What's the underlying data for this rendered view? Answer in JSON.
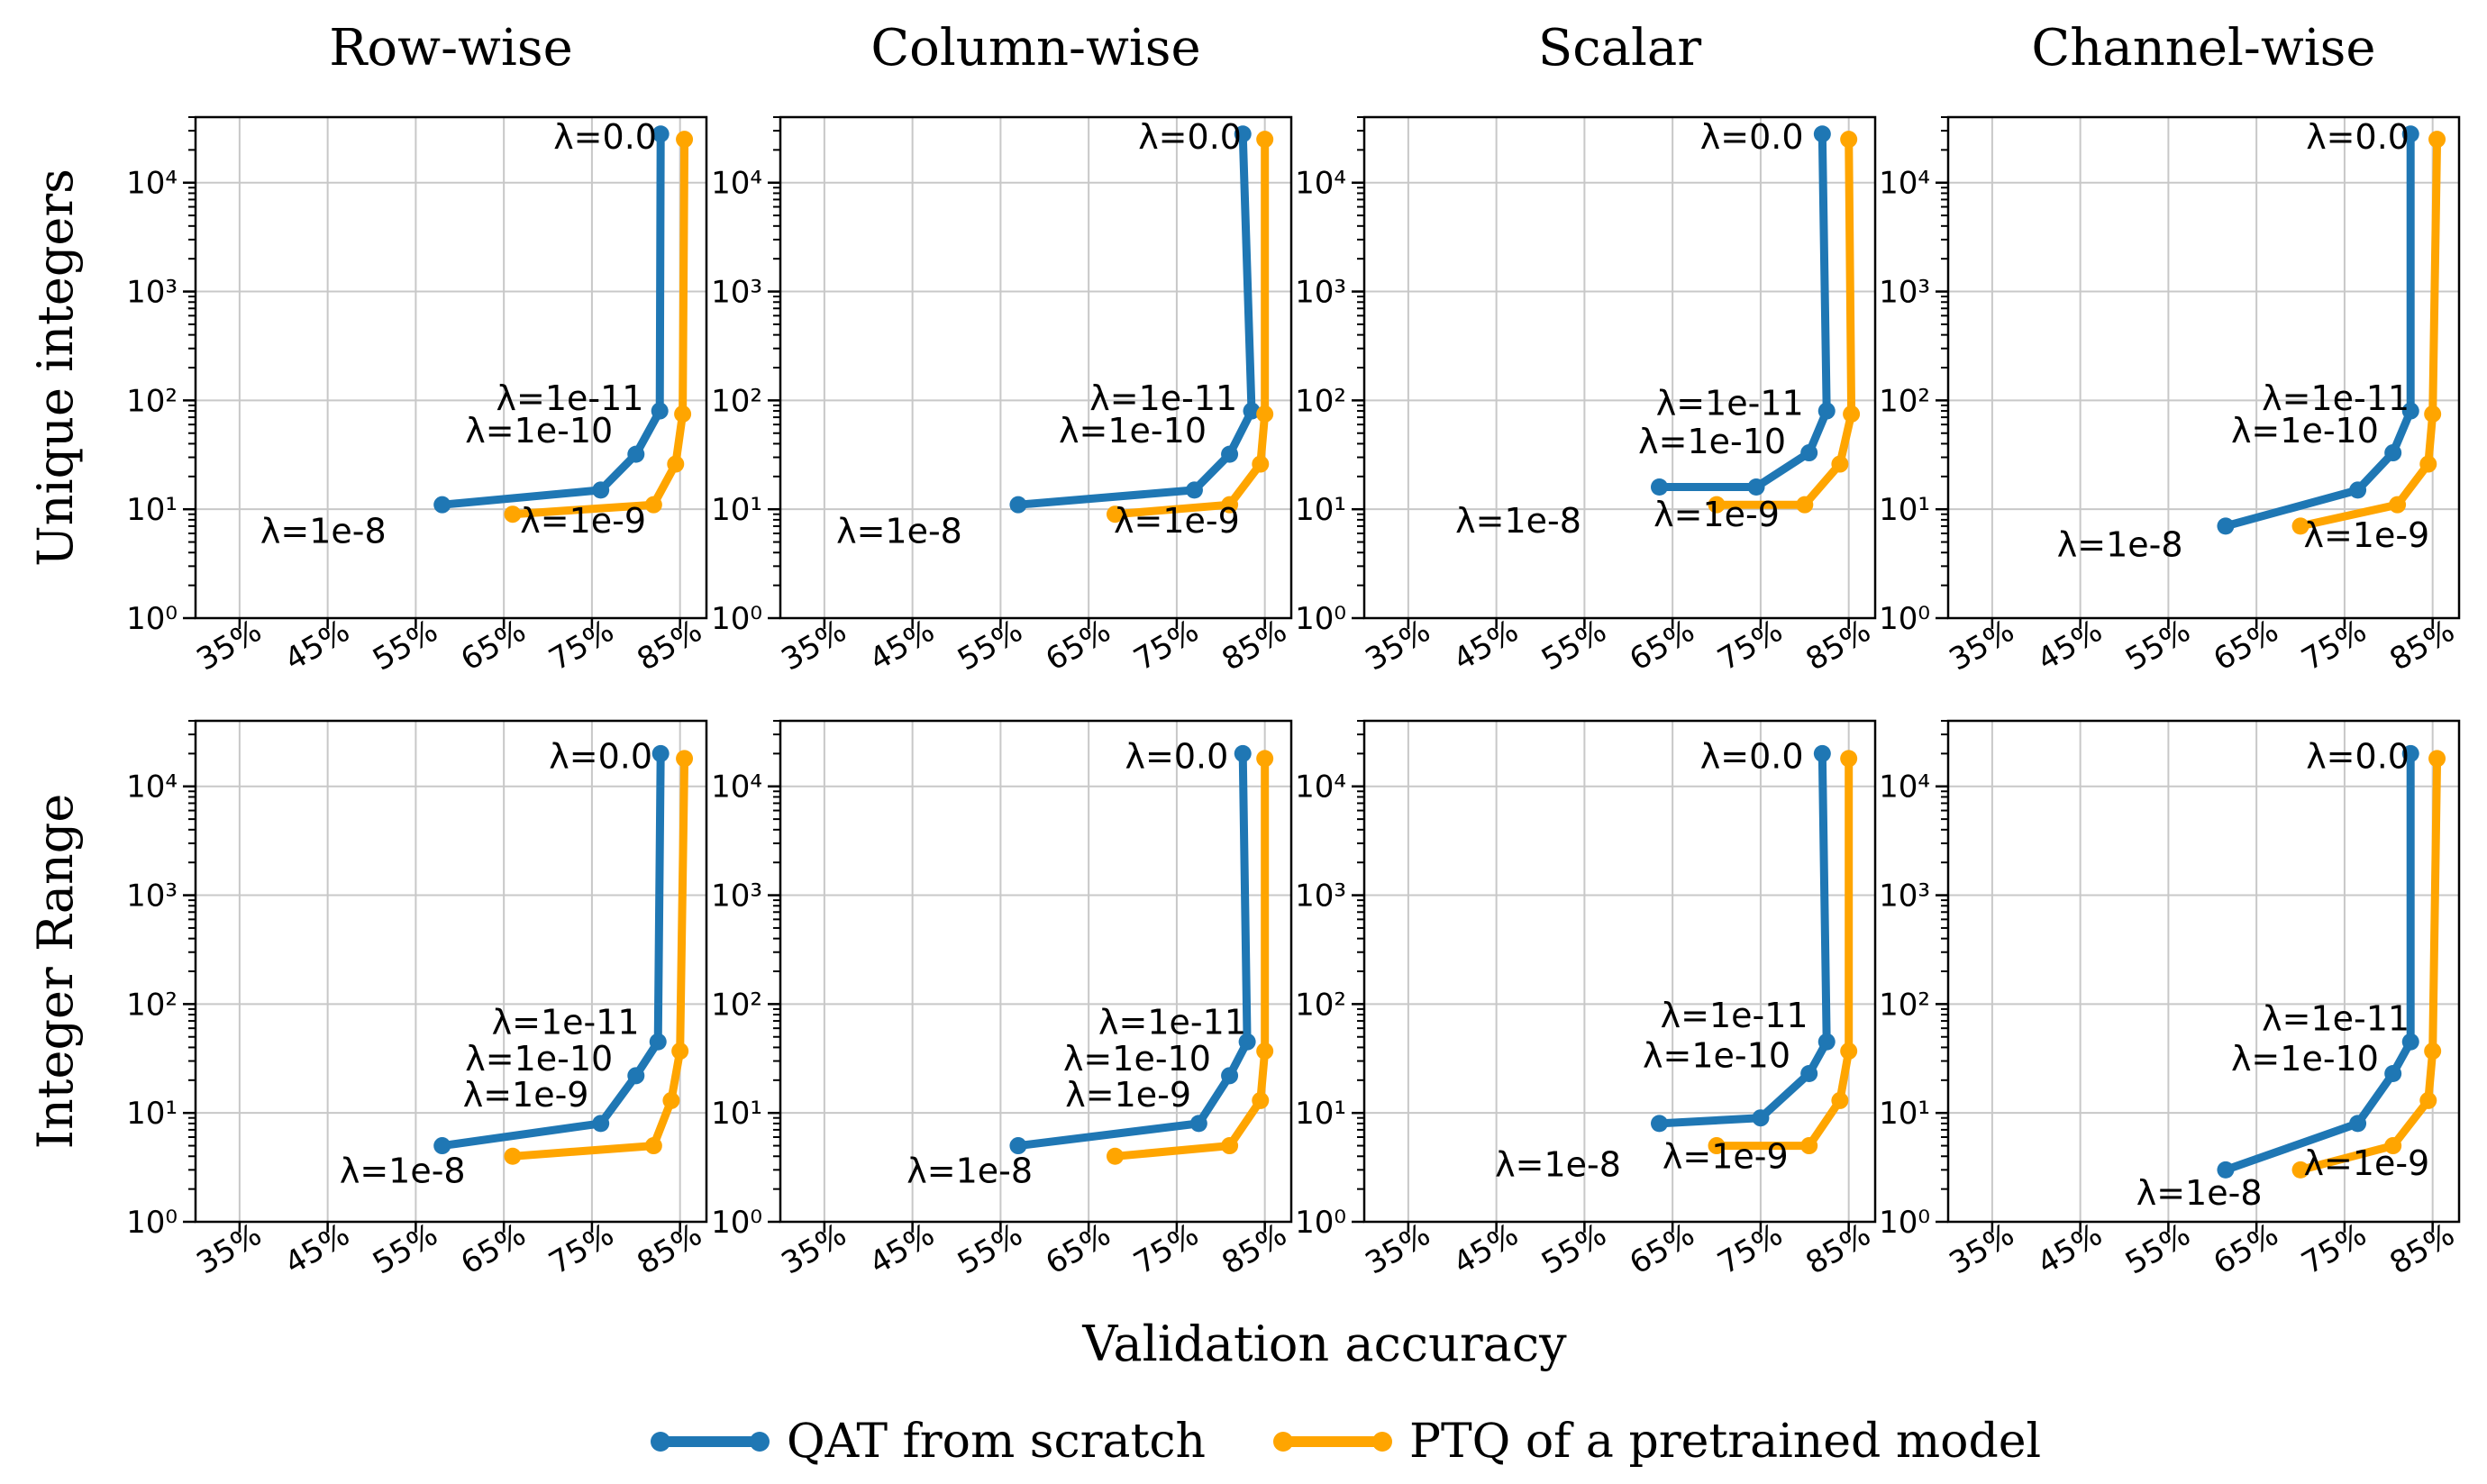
{
  "figure": {
    "column_titles": [
      "Row-wise",
      "Column-wise",
      "Scalar",
      "Channel-wise"
    ],
    "row_labels": [
      "Unique integers",
      "Integer Range"
    ],
    "xlabel": "Validation accuracy",
    "legend": [
      {
        "label": "QAT from scratch",
        "color": "#1f77b4"
      },
      {
        "label": "PTQ of a pretrained model",
        "color": "#ffa500"
      }
    ],
    "colors": {
      "qat": "#1f77b4",
      "ptq": "#ffa500",
      "grid": "#c8c8c8",
      "axis": "#000000"
    }
  },
  "chart_data": [
    {
      "type": "line",
      "row": 0,
      "col": 0,
      "title": "Row-wise",
      "ylabel": "Unique integers",
      "xlabel": "",
      "xlim": [
        30,
        88
      ],
      "x_ticks": [
        "35%",
        "45%",
        "55%",
        "65%",
        "75%",
        "85%"
      ],
      "ylog": true,
      "ylim": [
        1,
        40000
      ],
      "y_ticks": [
        "10⁰",
        "10¹",
        "10²",
        "10³",
        "10⁴"
      ],
      "grid": true,
      "series": [
        {
          "name": "QAT from scratch",
          "x": [
            58.0,
            76.0,
            80.0,
            82.7,
            82.8
          ],
          "y": [
            11,
            15,
            32,
            80,
            28000
          ]
        },
        {
          "name": "PTQ of a pretrained model",
          "x": [
            66.0,
            82.0,
            84.5,
            85.3,
            85.5
          ],
          "y": [
            9,
            11,
            26,
            75,
            25000
          ]
        }
      ],
      "annotations": [
        {
          "text": "λ=0.0",
          "x": 76.5,
          "y": 25000
        },
        {
          "text": "λ=1e-11",
          "x": 72.5,
          "y": 100
        },
        {
          "text": "λ=1e-10",
          "x": 69.0,
          "y": 50
        },
        {
          "text": "λ=1e-8",
          "x": 44.5,
          "y": 6.0
        },
        {
          "text": "λ=1e-9",
          "x": 74.0,
          "y": 7.5
        }
      ]
    },
    {
      "type": "line",
      "row": 0,
      "col": 1,
      "title": "Column-wise",
      "ylabel": "",
      "xlabel": "",
      "xlim": [
        30,
        88
      ],
      "x_ticks": [
        "35%",
        "45%",
        "55%",
        "65%",
        "75%",
        "85%"
      ],
      "ylog": true,
      "ylim": [
        1,
        40000
      ],
      "y_ticks": [
        "10⁰",
        "10¹",
        "10²",
        "10³",
        "10⁴"
      ],
      "grid": true,
      "series": [
        {
          "name": "QAT from scratch",
          "x": [
            57.0,
            77.0,
            81.0,
            83.5,
            82.5
          ],
          "y": [
            11,
            15,
            32,
            80,
            28000
          ]
        },
        {
          "name": "PTQ of a pretrained model",
          "x": [
            68.0,
            81.0,
            84.5,
            85.0,
            85.0
          ],
          "y": [
            9,
            11,
            26,
            75,
            25000
          ]
        }
      ],
      "annotations": [
        {
          "text": "λ=0.0",
          "x": 76.5,
          "y": 25000
        },
        {
          "text": "λ=1e-11",
          "x": 73.5,
          "y": 100
        },
        {
          "text": "λ=1e-10",
          "x": 70.0,
          "y": 50
        },
        {
          "text": "λ=1e-8",
          "x": 43.5,
          "y": 6.0
        },
        {
          "text": "λ=1e-9",
          "x": 75.0,
          "y": 7.5
        }
      ]
    },
    {
      "type": "line",
      "row": 0,
      "col": 2,
      "title": "Scalar",
      "ylabel": "",
      "xlabel": "",
      "xlim": [
        30,
        88
      ],
      "x_ticks": [
        "35%",
        "45%",
        "55%",
        "65%",
        "75%",
        "85%"
      ],
      "ylog": true,
      "ylim": [
        1,
        40000
      ],
      "y_ticks": [
        "10⁰",
        "10¹",
        "10²",
        "10³",
        "10⁴"
      ],
      "grid": true,
      "series": [
        {
          "name": "QAT from scratch",
          "x": [
            63.5,
            74.5,
            80.5,
            82.5,
            82.0
          ],
          "y": [
            16,
            16,
            33,
            80,
            28000
          ]
        },
        {
          "name": "PTQ of a pretrained model",
          "x": [
            70.0,
            80.0,
            84.0,
            85.3,
            85.0
          ],
          "y": [
            11,
            11,
            26,
            75,
            25000
          ]
        }
      ],
      "annotations": [
        {
          "text": "λ=0.0",
          "x": 74.0,
          "y": 25000
        },
        {
          "text": "λ=1e-11",
          "x": 71.5,
          "y": 90
        },
        {
          "text": "λ=1e-10",
          "x": 69.5,
          "y": 40
        },
        {
          "text": "λ=1e-8",
          "x": 47.5,
          "y": 7.5
        },
        {
          "text": "λ=1e-9",
          "x": 70.0,
          "y": 8.5
        }
      ]
    },
    {
      "type": "line",
      "row": 0,
      "col": 3,
      "title": "Channel-wise",
      "ylabel": "",
      "xlabel": "",
      "xlim": [
        30,
        88
      ],
      "x_ticks": [
        "35%",
        "45%",
        "55%",
        "65%",
        "75%",
        "85%"
      ],
      "ylog": true,
      "ylim": [
        1,
        40000
      ],
      "y_ticks": [
        "10⁰",
        "10¹",
        "10²",
        "10³",
        "10⁴"
      ],
      "grid": true,
      "series": [
        {
          "name": "QAT from scratch",
          "x": [
            61.5,
            76.5,
            80.5,
            82.5,
            82.5
          ],
          "y": [
            7,
            15,
            33,
            80,
            28000
          ]
        },
        {
          "name": "PTQ of a pretrained model",
          "x": [
            70.0,
            81.0,
            84.5,
            85.0,
            85.5
          ],
          "y": [
            7,
            11,
            26,
            75,
            25000
          ]
        }
      ],
      "annotations": [
        {
          "text": "λ=0.0",
          "x": 76.5,
          "y": 25000
        },
        {
          "text": "λ=1e-11",
          "x": 74.0,
          "y": 100
        },
        {
          "text": "λ=1e-10",
          "x": 70.5,
          "y": 50
        },
        {
          "text": "λ=1e-8",
          "x": 49.5,
          "y": 4.5
        },
        {
          "text": "λ=1e-9",
          "x": 77.5,
          "y": 5.5
        }
      ]
    },
    {
      "type": "line",
      "row": 1,
      "col": 0,
      "title": "",
      "ylabel": "Integer Range",
      "xlabel": "",
      "xlim": [
        30,
        88
      ],
      "x_ticks": [
        "35%",
        "45%",
        "55%",
        "65%",
        "75%",
        "85%"
      ],
      "ylog": true,
      "ylim": [
        1,
        40000
      ],
      "y_ticks": [
        "10⁰",
        "10¹",
        "10²",
        "10³",
        "10⁴"
      ],
      "grid": true,
      "series": [
        {
          "name": "QAT from scratch",
          "x": [
            58.0,
            76.0,
            80.0,
            82.5,
            82.8
          ],
          "y": [
            5,
            8,
            22,
            45,
            20000
          ]
        },
        {
          "name": "PTQ of a pretrained model",
          "x": [
            66.0,
            82.0,
            84.0,
            85.0,
            85.5
          ],
          "y": [
            4,
            5,
            13,
            37,
            18000
          ]
        }
      ],
      "annotations": [
        {
          "text": "λ=0.0",
          "x": 76.0,
          "y": 18000
        },
        {
          "text": "λ=1e-11",
          "x": 72.0,
          "y": 65
        },
        {
          "text": "λ=1e-10",
          "x": 69.0,
          "y": 30
        },
        {
          "text": "λ=1e-9",
          "x": 67.5,
          "y": 14
        },
        {
          "text": "λ=1e-8",
          "x": 53.5,
          "y": 2.8
        }
      ]
    },
    {
      "type": "line",
      "row": 1,
      "col": 1,
      "title": "",
      "ylabel": "",
      "xlabel": "",
      "xlim": [
        30,
        88
      ],
      "x_ticks": [
        "35%",
        "45%",
        "55%",
        "65%",
        "75%",
        "85%"
      ],
      "ylog": true,
      "ylim": [
        1,
        40000
      ],
      "y_ticks": [
        "10⁰",
        "10¹",
        "10²",
        "10³",
        "10⁴"
      ],
      "grid": true,
      "series": [
        {
          "name": "QAT from scratch",
          "x": [
            57.0,
            77.5,
            81.0,
            83.0,
            82.5
          ],
          "y": [
            5,
            8,
            22,
            45,
            20000
          ]
        },
        {
          "name": "PTQ of a pretrained model",
          "x": [
            68.0,
            81.0,
            84.5,
            85.0,
            85.0
          ],
          "y": [
            4,
            5,
            13,
            37,
            18000
          ]
        }
      ],
      "annotations": [
        {
          "text": "λ=0.0",
          "x": 75.0,
          "y": 18000
        },
        {
          "text": "λ=1e-11",
          "x": 74.5,
          "y": 65
        },
        {
          "text": "λ=1e-10",
          "x": 70.5,
          "y": 30
        },
        {
          "text": "λ=1e-9",
          "x": 69.5,
          "y": 14
        },
        {
          "text": "λ=1e-8",
          "x": 51.5,
          "y": 2.8
        }
      ]
    },
    {
      "type": "line",
      "row": 1,
      "col": 2,
      "title": "",
      "ylabel": "",
      "xlabel": "",
      "xlim": [
        30,
        88
      ],
      "x_ticks": [
        "35%",
        "45%",
        "55%",
        "65%",
        "75%",
        "85%"
      ],
      "ylog": true,
      "ylim": [
        1,
        40000
      ],
      "y_ticks": [
        "10⁰",
        "10¹",
        "10²",
        "10³",
        "10⁴"
      ],
      "grid": true,
      "series": [
        {
          "name": "QAT from scratch",
          "x": [
            63.5,
            75.0,
            80.5,
            82.5,
            82.0
          ],
          "y": [
            8,
            9,
            23,
            45,
            20000
          ]
        },
        {
          "name": "PTQ of a pretrained model",
          "x": [
            70.0,
            80.5,
            84.0,
            85.0,
            85.0
          ],
          "y": [
            5,
            5,
            13,
            37,
            18000
          ]
        }
      ],
      "annotations": [
        {
          "text": "λ=0.0",
          "x": 74.0,
          "y": 18000
        },
        {
          "text": "λ=1e-11",
          "x": 72.0,
          "y": 75
        },
        {
          "text": "λ=1e-10",
          "x": 70.0,
          "y": 32
        },
        {
          "text": "λ=1e-8",
          "x": 52.0,
          "y": 3.2
        },
        {
          "text": "λ=1e-9",
          "x": 71.0,
          "y": 3.8
        }
      ]
    },
    {
      "type": "line",
      "row": 1,
      "col": 3,
      "title": "",
      "ylabel": "",
      "xlabel": "",
      "xlim": [
        30,
        88
      ],
      "x_ticks": [
        "35%",
        "45%",
        "55%",
        "65%",
        "75%",
        "85%"
      ],
      "ylog": true,
      "ylim": [
        1,
        40000
      ],
      "y_ticks": [
        "10⁰",
        "10¹",
        "10²",
        "10³",
        "10⁴"
      ],
      "grid": true,
      "series": [
        {
          "name": "QAT from scratch",
          "x": [
            61.5,
            76.5,
            80.5,
            82.5,
            82.5
          ],
          "y": [
            3,
            8,
            23,
            45,
            20000
          ]
        },
        {
          "name": "PTQ of a pretrained model",
          "x": [
            70.0,
            80.5,
            84.5,
            85.0,
            85.5
          ],
          "y": [
            3,
            5,
            13,
            37,
            18000
          ]
        }
      ],
      "annotations": [
        {
          "text": "λ=0.0",
          "x": 76.5,
          "y": 18000
        },
        {
          "text": "λ=1e-11",
          "x": 74.0,
          "y": 70
        },
        {
          "text": "λ=1e-10",
          "x": 70.5,
          "y": 30
        },
        {
          "text": "λ=1e-8",
          "x": 58.5,
          "y": 1.75
        },
        {
          "text": "λ=1e-9",
          "x": 77.5,
          "y": 3.3
        }
      ]
    }
  ]
}
